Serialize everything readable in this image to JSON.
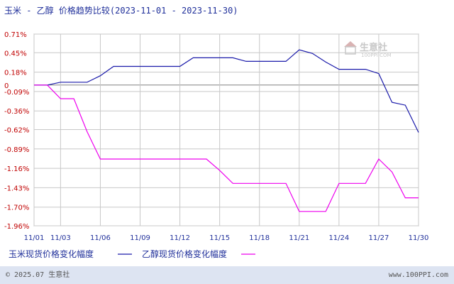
{
  "header": {
    "title": "玉米 - 乙醇 价格趋势比较(2023-11-01 - 2023-11-30)"
  },
  "watermark": {
    "brand": "生意社",
    "url": "100PPI.COM"
  },
  "footer": {
    "left": "© 2025.07 生意社",
    "right": "www.100PPI.com"
  },
  "colors": {
    "series_1": "#1a1aaa",
    "series_2": "#ee00ee",
    "grid": "#c8c8c8",
    "zero_line": "#808080",
    "ytick": "#c00000",
    "text": "#1f2f9a",
    "footer_band": "#dde4f2"
  },
  "chart_data": {
    "type": "line",
    "title": "玉米 - 乙醇 价格趋势比较(2023-11-01 - 2023-11-30)",
    "xlabel": "",
    "ylabel": "",
    "ylim": [
      -1.96,
      0.71
    ],
    "yticks": [
      0.71,
      0.45,
      0.18,
      0,
      -0.09,
      -0.36,
      -0.62,
      -0.89,
      -1.16,
      -1.43,
      -1.7,
      -1.96
    ],
    "ytick_labels": [
      "0.71%",
      "0.45%",
      "0.18%",
      "0",
      "-0.09%",
      "-0.36%",
      "-0.62%",
      "-0.89%",
      "-1.16%",
      "-1.43%",
      "-1.70%",
      "-1.96%"
    ],
    "x": [
      "11/01",
      "11/02",
      "11/03",
      "11/04",
      "11/05",
      "11/06",
      "11/07",
      "11/08",
      "11/09",
      "11/10",
      "11/11",
      "11/12",
      "11/13",
      "11/14",
      "11/15",
      "11/16",
      "11/17",
      "11/18",
      "11/19",
      "11/20",
      "11/21",
      "11/22",
      "11/23",
      "11/24",
      "11/25",
      "11/26",
      "11/27",
      "11/28",
      "11/29",
      "11/30"
    ],
    "xtick_labels": [
      "11/01",
      "11/03",
      "11/06",
      "11/09",
      "11/12",
      "11/15",
      "11/18",
      "11/21",
      "11/24",
      "11/27",
      "11/30"
    ],
    "grid": true,
    "legend_position": "bottom-left",
    "series": [
      {
        "name": "玉米现货价格变化幅度",
        "color": "#1a1aaa",
        "values": [
          0.0,
          0.0,
          0.04,
          0.04,
          0.04,
          0.13,
          0.26,
          0.26,
          0.26,
          0.26,
          0.26,
          0.26,
          0.38,
          0.38,
          0.38,
          0.38,
          0.33,
          0.33,
          0.33,
          0.33,
          0.49,
          0.44,
          0.32,
          0.22,
          0.22,
          0.22,
          0.16,
          -0.24,
          -0.28,
          -0.66
        ]
      },
      {
        "name": "乙醇现货价格变化幅度",
        "color": "#ee00ee",
        "values": [
          0.0,
          0.0,
          -0.19,
          -0.19,
          -0.65,
          -1.03,
          -1.03,
          -1.03,
          -1.03,
          -1.03,
          -1.03,
          -1.03,
          -1.03,
          -1.03,
          -1.19,
          -1.37,
          -1.37,
          -1.37,
          -1.37,
          -1.37,
          -1.76,
          -1.76,
          -1.76,
          -1.37,
          -1.37,
          -1.37,
          -1.03,
          -1.21,
          -1.57,
          -1.57
        ]
      }
    ]
  }
}
